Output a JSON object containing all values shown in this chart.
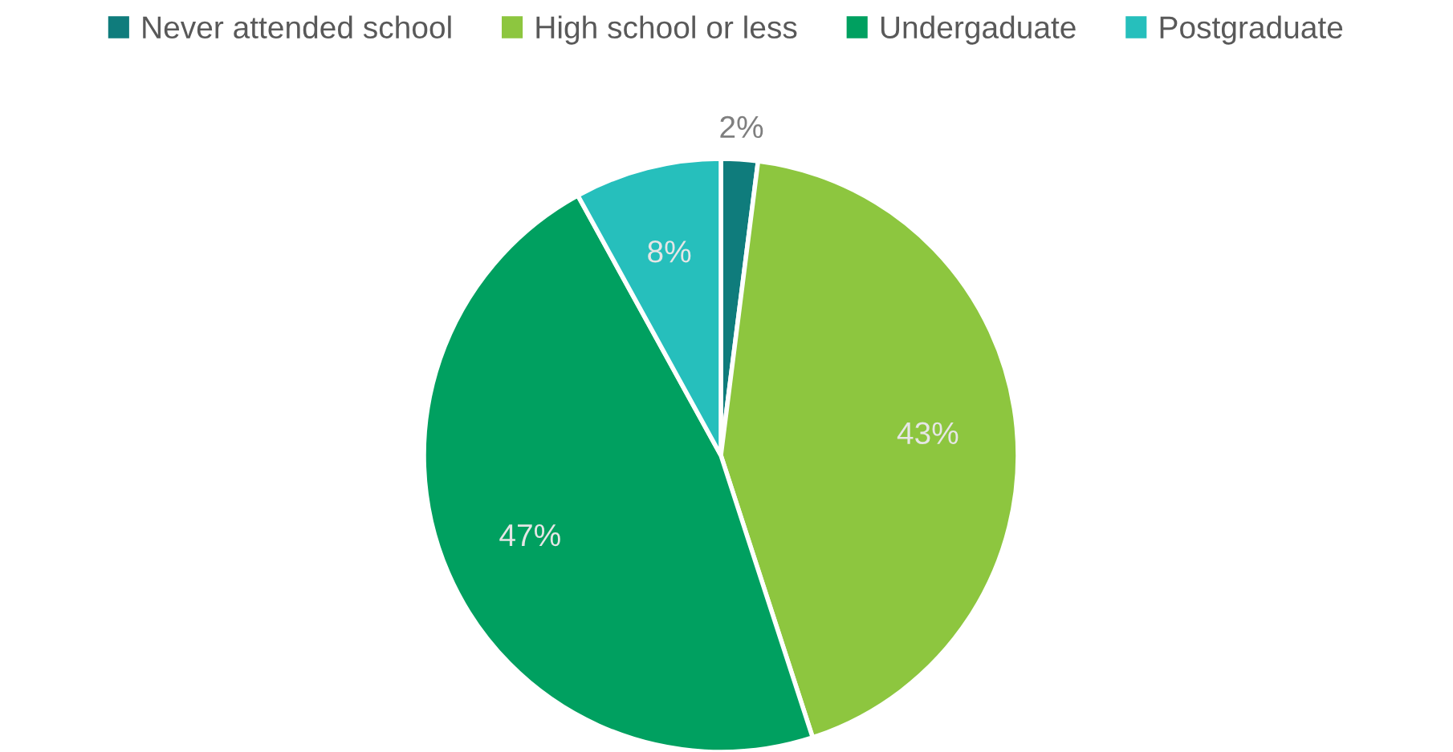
{
  "chart_data": {
    "type": "pie",
    "categories": [
      "Never attended school",
      "High school or less",
      "Undergaduate",
      "Postgraduate"
    ],
    "values": [
      2,
      43,
      47,
      8
    ],
    "colors": [
      "#0f7c7c",
      "#8dc63f",
      "#00a060",
      "#26bfbc"
    ],
    "value_labels": [
      "2%",
      "43%",
      "47%",
      "8%"
    ],
    "legend": "top"
  }
}
